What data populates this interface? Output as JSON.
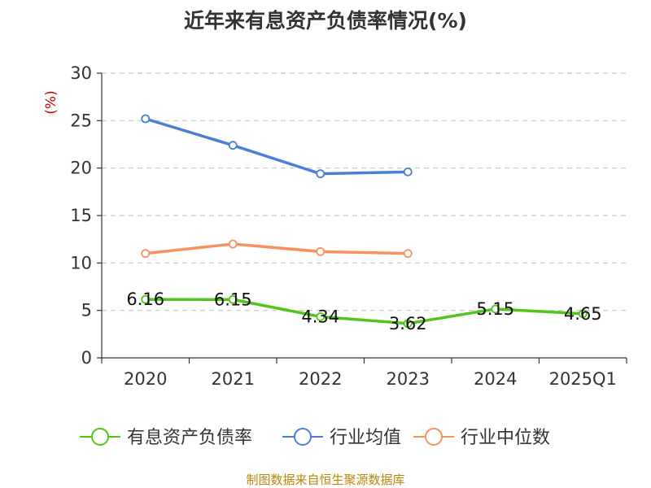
{
  "chart_data": {
    "type": "line",
    "title": "近年来有息资产负债率情况(%)",
    "ylabel": "(%)",
    "xlabel": "",
    "ylim": [
      0,
      30
    ],
    "yticks": [
      0,
      5,
      10,
      15,
      20,
      25,
      30
    ],
    "grid": true,
    "legend_position": "bottom",
    "categories": [
      "2020",
      "2021",
      "2022",
      "2023",
      "2024",
      "2025Q1"
    ],
    "series": [
      {
        "name": "有息资产负债率",
        "color": "#52c41a",
        "labels": true,
        "values": [
          6.16,
          6.15,
          4.34,
          3.62,
          5.15,
          4.65
        ]
      },
      {
        "name": "行业均值",
        "color": "#4a7fd4",
        "labels": false,
        "values": [
          25.2,
          22.4,
          19.4,
          19.6,
          null,
          null
        ]
      },
      {
        "name": "行业中位数",
        "color": "#f5925e",
        "labels": false,
        "values": [
          11.0,
          12.0,
          11.2,
          11.0,
          null,
          null
        ]
      }
    ],
    "source": "制图数据来自恒生聚源数据库"
  }
}
